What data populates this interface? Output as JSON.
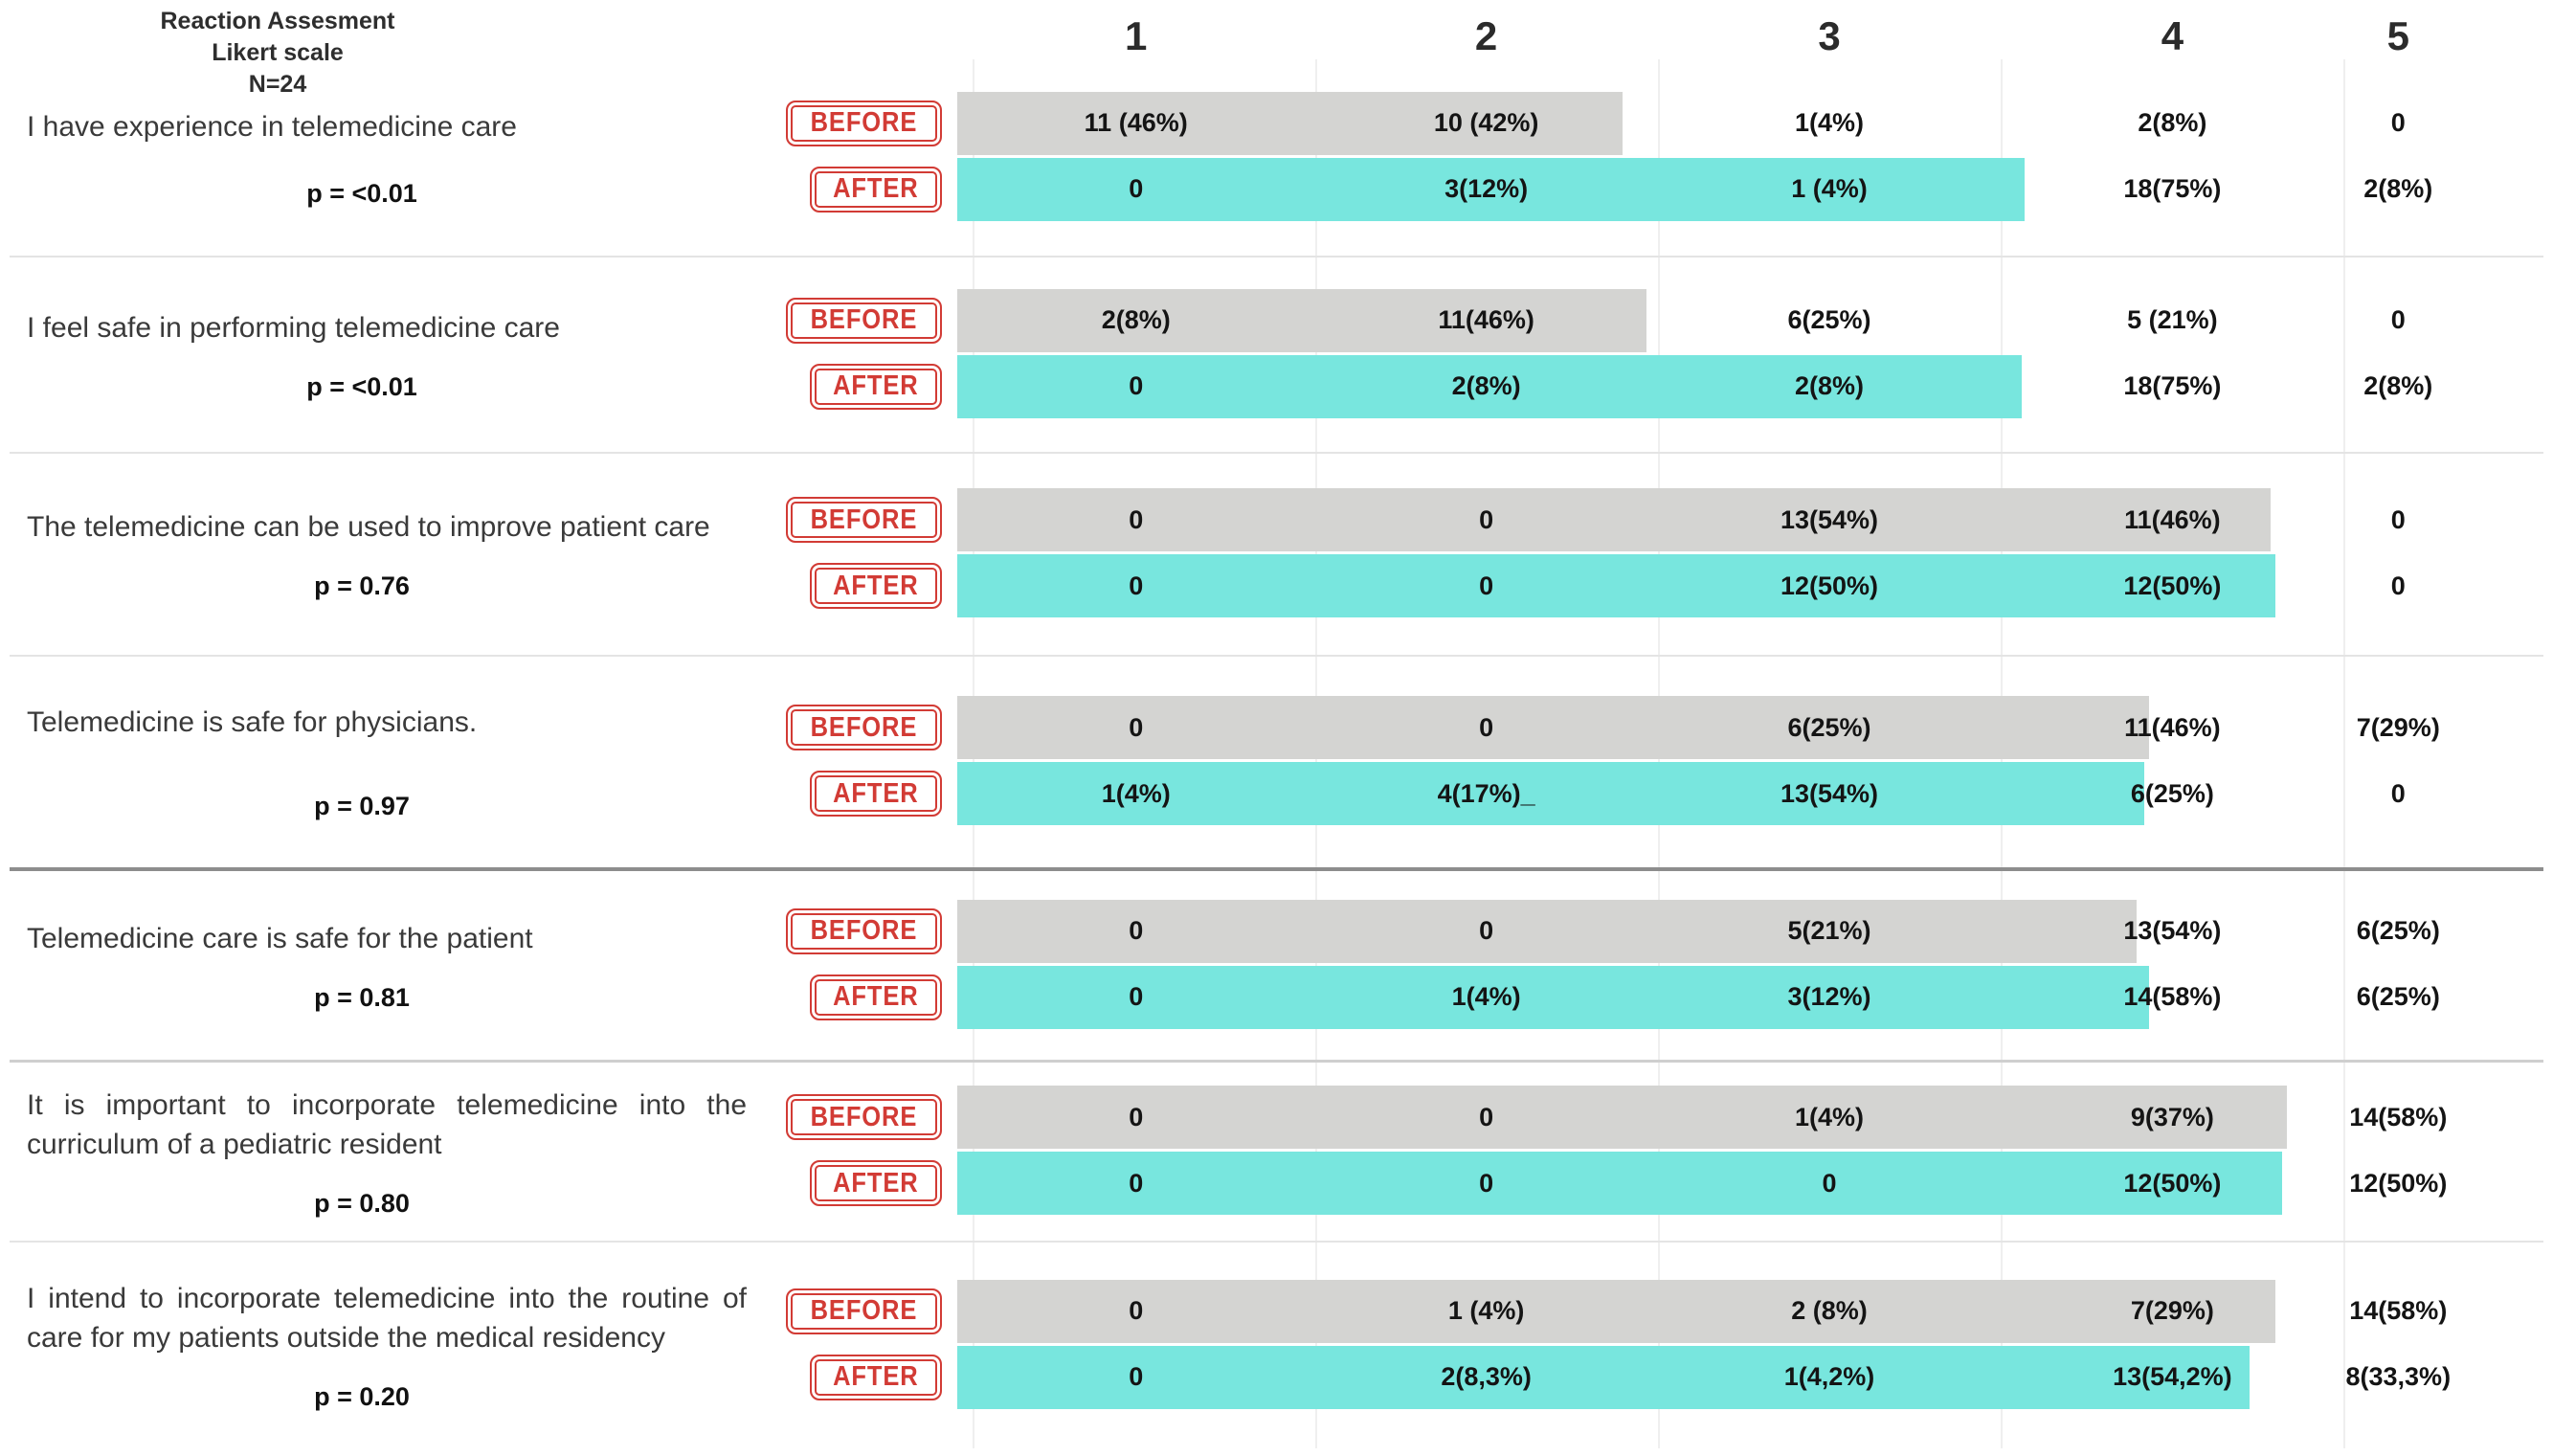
{
  "title": {
    "line1": "Reaction Assesment",
    "line2": "Likert scale",
    "line3": "N=24"
  },
  "columns": [
    "1",
    "2",
    "3",
    "4",
    "5"
  ],
  "row_labels": {
    "before": "BEFORE",
    "after": "AFTER"
  },
  "colors": {
    "before_bar": "#d4d4d2",
    "after_bar": "#78e6de",
    "stamp_red": "#d23b35"
  },
  "questions": [
    {
      "text": "I have experience in telemedicine care",
      "p_label": "p = <0.01",
      "before": {
        "values": [
          "11 (46%)",
          "10 (42%)",
          "1(4%)",
          "2(8%)",
          "0"
        ],
        "bar_width": "41.7%"
      },
      "after": {
        "values": [
          "0",
          "3(12%)",
          "1 (4%)",
          "18(75%)",
          "2(8%)"
        ],
        "bar_width": "66.9%"
      }
    },
    {
      "text": "I feel safe in performing telemedicine care",
      "p_label": "p = <0.01",
      "before": {
        "values": [
          "2(8%)",
          "11(46%)",
          "6(25%)",
          "5 (21%)",
          "0"
        ],
        "bar_width": "43.2%"
      },
      "after": {
        "values": [
          "0",
          "2(8%)",
          "2(8%)",
          "18(75%)",
          "2(8%)"
        ],
        "bar_width": "66.7%"
      }
    },
    {
      "text": "The telemedicine can be used to improve patient care",
      "p_label": "p = 0.76",
      "before": {
        "values": [
          "0",
          "0",
          "13(54%)",
          "11(46%)",
          "0"
        ],
        "bar_width": "82.3%"
      },
      "after": {
        "values": [
          "0",
          "0",
          "12(50%)",
          "12(50%)",
          "0"
        ],
        "bar_width": "82.6%"
      }
    },
    {
      "text": "Telemedicine is safe for physicians.",
      "p_label": "p = 0.97",
      "before": {
        "values": [
          "0",
          "0",
          "6(25%)",
          "11(46%)",
          "7(29%)"
        ],
        "bar_width": "74.7%"
      },
      "after": {
        "values": [
          "1(4%)",
          "4(17%)_",
          "13(54%)",
          "6(25%)",
          "0"
        ],
        "bar_width": "74.4%"
      }
    },
    {
      "text": "Telemedicine care is safe for the patient",
      "p_label": "p = 0.81",
      "before": {
        "values": [
          "0",
          "0",
          "5(21%)",
          "13(54%)",
          "6(25%)"
        ],
        "bar_width": "73.9%"
      },
      "after": {
        "values": [
          "0",
          "1(4%)",
          "3(12%)",
          "14(58%)",
          "6(25%)"
        ],
        "bar_width": "74.7%"
      }
    },
    {
      "text": "It is important to incorporate telemedicine into the curriculum of a pediatric resident",
      "p_label": "p = 0.80",
      "before": {
        "values": [
          "0",
          "0",
          "1(4%)",
          "9(37%)",
          "14(58%)"
        ],
        "bar_width": "83.3%"
      },
      "after": {
        "values": [
          "0",
          "0",
          "0",
          "12(50%)",
          "12(50%)"
        ],
        "bar_width": "83.0%"
      }
    },
    {
      "text": "I intend to incorporate telemedicine into the routine of care for my patients outside the medical residency",
      "p_label": "p = 0.20",
      "before": {
        "values": [
          "0",
          "1 (4%)",
          "2 (8%)",
          "7(29%)",
          "14(58%)"
        ],
        "bar_width": "82.6%"
      },
      "after": {
        "values": [
          "0",
          "2(8,3%)",
          "1(4,2%)",
          "13(54,2%)",
          "8(33,3%)"
        ],
        "bar_width": "81.0%"
      }
    }
  ],
  "chart_data": {
    "type": "table",
    "title": "Reaction Assesment Likert scale",
    "n": 24,
    "likert_columns": [
      1,
      2,
      3,
      4,
      5
    ],
    "series_labels": [
      "BEFORE",
      "AFTER"
    ],
    "rows": [
      {
        "question": "I have experience in telemedicine care",
        "p": "<0.01",
        "before_counts": [
          11,
          10,
          1,
          2,
          0
        ],
        "before_pcts": [
          46,
          42,
          4,
          8,
          0
        ],
        "after_counts": [
          0,
          3,
          1,
          18,
          2
        ],
        "after_pcts": [
          0,
          12,
          4,
          75,
          8
        ]
      },
      {
        "question": "I feel safe in performing telemedicine care",
        "p": "<0.01",
        "before_counts": [
          2,
          11,
          6,
          5,
          0
        ],
        "before_pcts": [
          8,
          46,
          25,
          21,
          0
        ],
        "after_counts": [
          0,
          2,
          2,
          18,
          2
        ],
        "after_pcts": [
          0,
          8,
          8,
          75,
          8
        ]
      },
      {
        "question": "The telemedicine can be used to improve patient care",
        "p": "0.76",
        "before_counts": [
          0,
          0,
          13,
          11,
          0
        ],
        "before_pcts": [
          0,
          0,
          54,
          46,
          0
        ],
        "after_counts": [
          0,
          0,
          12,
          12,
          0
        ],
        "after_pcts": [
          0,
          0,
          50,
          50,
          0
        ]
      },
      {
        "question": "Telemedicine is safe for physicians.",
        "p": "0.97",
        "before_counts": [
          0,
          0,
          6,
          11,
          7
        ],
        "before_pcts": [
          0,
          0,
          25,
          46,
          29
        ],
        "after_counts": [
          1,
          4,
          13,
          6,
          0
        ],
        "after_pcts": [
          4,
          17,
          54,
          25,
          0
        ]
      },
      {
        "question": "Telemedicine care is safe for the patient",
        "p": "0.81",
        "before_counts": [
          0,
          0,
          5,
          13,
          6
        ],
        "before_pcts": [
          0,
          0,
          21,
          54,
          25
        ],
        "after_counts": [
          0,
          1,
          3,
          14,
          6
        ],
        "after_pcts": [
          0,
          4,
          12,
          58,
          25
        ]
      },
      {
        "question": "It is important to incorporate telemedicine into the curriculum of a pediatric resident",
        "p": "0.80",
        "before_counts": [
          0,
          0,
          1,
          9,
          14
        ],
        "before_pcts": [
          0,
          0,
          4,
          37,
          58
        ],
        "after_counts": [
          0,
          0,
          0,
          12,
          12
        ],
        "after_pcts": [
          0,
          0,
          0,
          50,
          50
        ]
      },
      {
        "question": "I intend to incorporate telemedicine into the routine of care for my patients outside the medical residency",
        "p": "0.20",
        "before_counts": [
          0,
          1,
          2,
          7,
          14
        ],
        "before_pcts": [
          0,
          4,
          8,
          29,
          58
        ],
        "after_counts": [
          0,
          2,
          1,
          13,
          8
        ],
        "after_pcts": [
          0,
          8.3,
          4.2,
          54.2,
          33.3
        ]
      }
    ]
  }
}
